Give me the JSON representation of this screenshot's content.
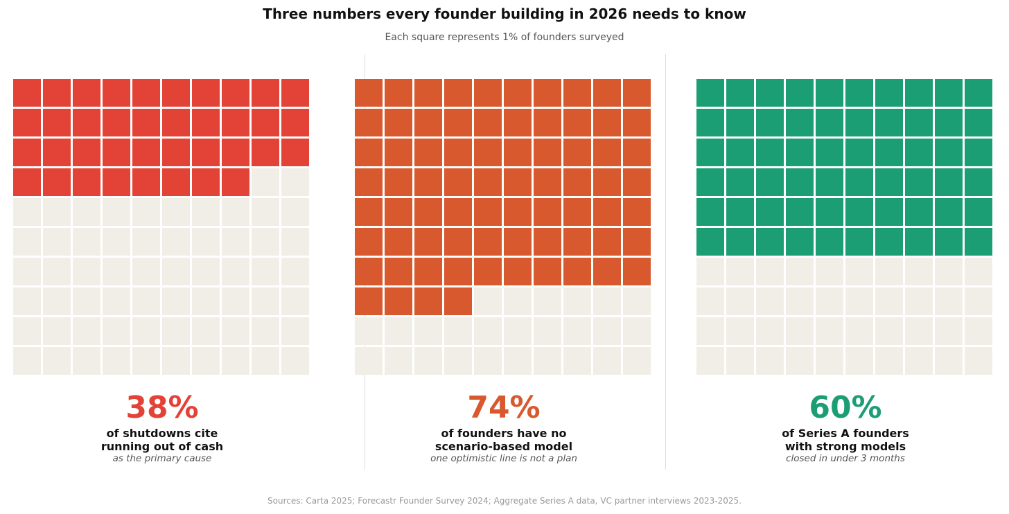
{
  "chart_data": {
    "type": "waffle",
    "title": "Three numbers every founder building in 2026 needs to know",
    "subtitle": "Each square represents 1% of founders surveyed",
    "empty_color": "#f0eee6",
    "panels": [
      {
        "value": 38,
        "value_label": "38%",
        "label_line1": "of shutdowns cite",
        "label_line2": "running out of cash",
        "note": "as the primary cause",
        "color": "#e34236"
      },
      {
        "value": 74,
        "value_label": "74%",
        "label_line1": "of founders have no",
        "label_line2": "scenario-based model",
        "note": "one optimistic line is not a plan",
        "color": "#d9592f"
      },
      {
        "value": 60,
        "value_label": "60%",
        "label_line1": "of Series A founders",
        "label_line2": "with strong models",
        "note": "closed in under 3 months",
        "color": "#1c9e74"
      }
    ],
    "source": "Sources: Carta 2025; Forecastr Founder Survey 2024; Aggregate Series A data, VC partner interviews 2023-2025."
  }
}
